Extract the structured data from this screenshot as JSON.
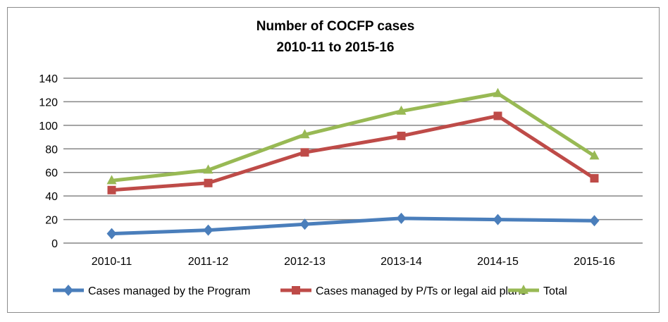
{
  "chart_data": {
    "type": "line",
    "title": [
      "Number of COCFP cases",
      "2010-11 to 2015-16"
    ],
    "categories": [
      "2010-11",
      "2011-12",
      "2012-13",
      "2013-14",
      "2014-15",
      "2015-16"
    ],
    "ylim": [
      0,
      140
    ],
    "yticks": [
      0,
      20,
      40,
      60,
      80,
      100,
      120,
      140
    ],
    "grid": true,
    "legend_position": "bottom",
    "series": [
      {
        "name": "Cases managed by the Program",
        "values": [
          8,
          11,
          16,
          21,
          20,
          19
        ],
        "color": "#4a7ebb",
        "marker": "diamond"
      },
      {
        "name": "Cases managed by P/Ts or legal aid plans",
        "values": [
          45,
          51,
          77,
          91,
          108,
          55
        ],
        "color": "#be4b48",
        "marker": "square"
      },
      {
        "name": "Total",
        "values": [
          53,
          62,
          92,
          112,
          127,
          74
        ],
        "color": "#98b954",
        "marker": "triangle"
      }
    ]
  }
}
